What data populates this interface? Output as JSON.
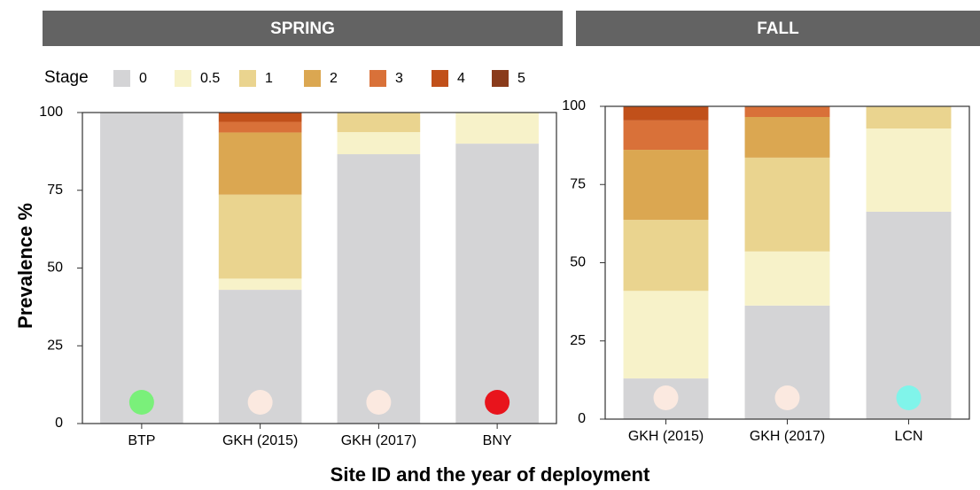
{
  "chart_data": [
    {
      "type": "bar",
      "stacked": true,
      "title": "SPRING",
      "legend_title": "Stage",
      "ylabel": "Prevalence %",
      "xlabel": "Site ID and the year of deployment",
      "categories": [
        "BTP",
        "GKH (2015)",
        "GKH (2017)",
        "BNY"
      ],
      "dot_colors": [
        "#7af07a",
        "#fbe9e0",
        "#fbe9e0",
        "#e8141c"
      ],
      "series": [
        {
          "name": "0",
          "color": "#d4d4d6",
          "values": [
            100,
            43,
            86.6,
            90
          ]
        },
        {
          "name": "0.5",
          "color": "#f7f2c9",
          "values": [
            0,
            3.6,
            7.1,
            10
          ]
        },
        {
          "name": "1",
          "color": "#ead48f",
          "values": [
            0,
            27,
            6.3,
            0
          ]
        },
        {
          "name": "2",
          "color": "#dba751",
          "values": [
            0,
            20,
            0,
            0
          ]
        },
        {
          "name": "3",
          "color": "#d97139",
          "values": [
            0,
            3.4,
            0,
            0
          ]
        },
        {
          "name": "4",
          "color": "#c1501a",
          "values": [
            0,
            3,
            0,
            0
          ]
        },
        {
          "name": "5",
          "color": "#8a3b1b",
          "values": [
            0,
            0,
            0,
            0
          ]
        }
      ],
      "ylim": [
        0,
        100
      ],
      "yticks": [
        0,
        25,
        50,
        75,
        100
      ]
    },
    {
      "type": "bar",
      "stacked": true,
      "title": "FALL",
      "categories": [
        "GKH (2015)",
        "GKH (2017)",
        "LCN"
      ],
      "dot_colors": [
        "#fbe9e0",
        "#fbe9e0",
        "#80f4ea"
      ],
      "series": [
        {
          "name": "0",
          "color": "#d4d4d6",
          "values": [
            13,
            36.3,
            66.3
          ]
        },
        {
          "name": "0.5",
          "color": "#f7f2c9",
          "values": [
            28,
            17.3,
            26.6
          ]
        },
        {
          "name": "1",
          "color": "#ead48f",
          "values": [
            22.7,
            30,
            7.1
          ]
        },
        {
          "name": "2",
          "color": "#dba751",
          "values": [
            22.4,
            13,
            0
          ]
        },
        {
          "name": "3",
          "color": "#d97139",
          "values": [
            9.4,
            3.4,
            0
          ]
        },
        {
          "name": "4",
          "color": "#c1501a",
          "values": [
            4.5,
            0,
            0
          ]
        },
        {
          "name": "5",
          "color": "#8a3b1b",
          "values": [
            0,
            0,
            0
          ]
        }
      ],
      "ylim": [
        0,
        100
      ],
      "yticks": [
        0,
        25,
        50,
        75,
        100
      ]
    }
  ]
}
